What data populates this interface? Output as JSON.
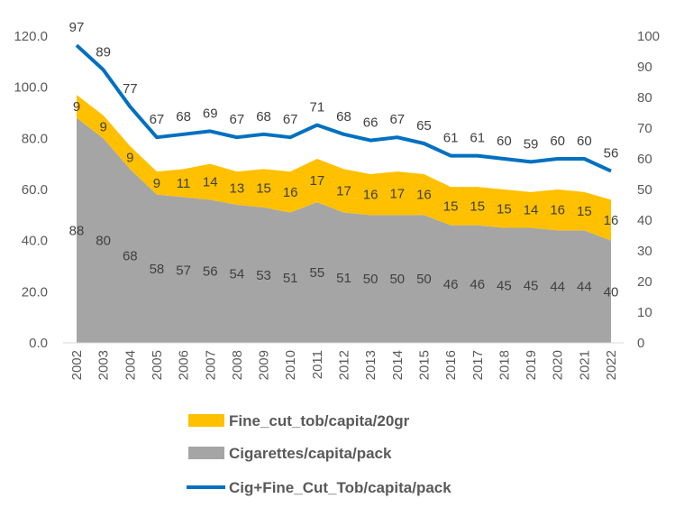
{
  "chart_data": {
    "type": "area",
    "categories": [
      "2002",
      "2003",
      "2004",
      "2005",
      "2006",
      "2007",
      "2008",
      "2009",
      "2010",
      "2011",
      "2012",
      "2013",
      "2014",
      "2015",
      "2016",
      "2017",
      "2018",
      "2019",
      "2020",
      "2021",
      "2022"
    ],
    "series": [
      {
        "name": "Cigarettes/capita/pack",
        "type": "stacked-area",
        "axis": "left",
        "color": "#A5A5A5",
        "values": [
          88,
          80,
          68,
          58,
          57,
          56,
          54,
          53,
          51,
          55,
          51,
          50,
          50,
          50,
          46,
          46,
          45,
          45,
          44,
          44,
          40
        ]
      },
      {
        "name": "Fine_cut_tob/capita/20gr",
        "type": "stacked-area",
        "axis": "left",
        "color": "#FFC000",
        "values": [
          9,
          9,
          9,
          9,
          11,
          14,
          13,
          15,
          16,
          17,
          17,
          16,
          17,
          16,
          15,
          15,
          15,
          14,
          16,
          15,
          16
        ]
      },
      {
        "name": "Cig+Fine_Cut_Tob/capita/pack",
        "type": "line",
        "axis": "right",
        "color": "#0070C0",
        "values": [
          97,
          89,
          77,
          67,
          68,
          69,
          67,
          68,
          67,
          71,
          68,
          66,
          67,
          65,
          61,
          61,
          60,
          59,
          60,
          60,
          56
        ]
      }
    ],
    "left_axis": {
      "ylim": [
        0,
        120
      ],
      "ticks": [
        "0.0",
        "20.0",
        "40.0",
        "60.0",
        "80.0",
        "100.0",
        "120.0"
      ]
    },
    "right_axis": {
      "ylim": [
        0,
        100
      ],
      "ticks": [
        "0",
        "10",
        "20",
        "30",
        "40",
        "50",
        "60",
        "70",
        "80",
        "90",
        "100"
      ]
    },
    "grid": false,
    "legend": "bottom"
  }
}
